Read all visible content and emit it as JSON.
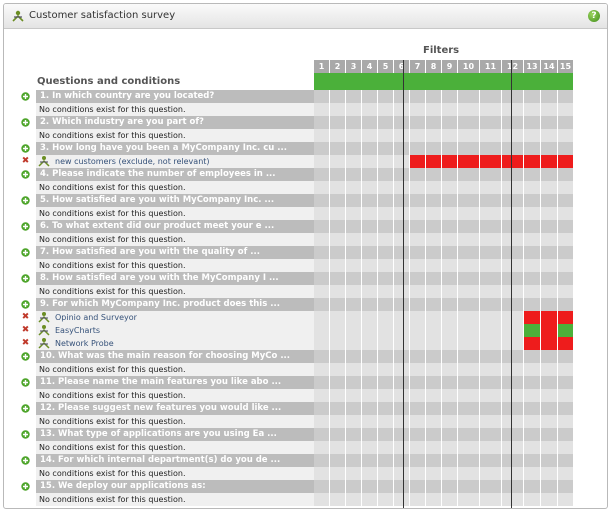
{
  "window": {
    "title": "Customer satisfaction survey",
    "help_icon": "help-icon"
  },
  "header": {
    "filters_label": "Filters",
    "questions_label": "Questions and conditions"
  },
  "filters": [
    "1",
    "2",
    "3",
    "4",
    "5",
    "6",
    "7",
    "8",
    "9",
    "10",
    "11",
    "12",
    "13",
    "14",
    "15"
  ],
  "colors": {
    "green": "#4bb03a",
    "red": "#ee1c1c",
    "grey_cell": "#cbcbcb",
    "light_cell": "#e2e2e2",
    "question_bar": "#bcbcbc"
  },
  "no_conditions_text": "No conditions exist for this question.",
  "questions": [
    {
      "label": "1. In which country are you located?",
      "conditions": []
    },
    {
      "label": "2. Which industry are you part of?",
      "conditions": []
    },
    {
      "label": "3. How long have you been a MyCompany Inc. cu ...",
      "conditions": [
        {
          "label": "new customers (exclude, not relevant)",
          "states": [
            "",
            "",
            "",
            "",
            "",
            "",
            "red",
            "red",
            "red",
            "red",
            "red",
            "red",
            "red",
            "red",
            "red"
          ]
        }
      ]
    },
    {
      "label": "4. Please indicate the number of employees in ...",
      "conditions": []
    },
    {
      "label": "5. How satisfied are you with MyCompany Inc. ...",
      "conditions": []
    },
    {
      "label": "6. To what extent did our product meet your e ...",
      "conditions": []
    },
    {
      "label": "7. How satisfied are you with the quality of ...",
      "conditions": []
    },
    {
      "label": "8. How satisfied are you with the MyCompany I ...",
      "conditions": []
    },
    {
      "label": "9. For which MyCompany Inc. product does this ...",
      "conditions": [
        {
          "label": "Opinio and Surveyor",
          "states": [
            "",
            "",
            "",
            "",
            "",
            "",
            "",
            "",
            "",
            "",
            "",
            "",
            "red",
            "red",
            "red"
          ]
        },
        {
          "label": "EasyCharts",
          "states": [
            "",
            "",
            "",
            "",
            "",
            "",
            "",
            "",
            "",
            "",
            "",
            "",
            "green",
            "red",
            "green"
          ]
        },
        {
          "label": "Network Probe",
          "states": [
            "",
            "",
            "",
            "",
            "",
            "",
            "",
            "",
            "",
            "",
            "",
            "",
            "red",
            "red",
            "red"
          ]
        }
      ]
    },
    {
      "label": "10. What was the main reason for choosing MyCo ...",
      "conditions": []
    },
    {
      "label": "11. Please name the main features you like abo ...",
      "conditions": []
    },
    {
      "label": "12. Please suggest new features you would like ...",
      "conditions": []
    },
    {
      "label": "13. What type of applications are you using Ea ...",
      "conditions": []
    },
    {
      "label": "14. For which internal department(s) do you de ...",
      "conditions": []
    },
    {
      "label": "15. We deploy our applications as:",
      "conditions": []
    }
  ]
}
